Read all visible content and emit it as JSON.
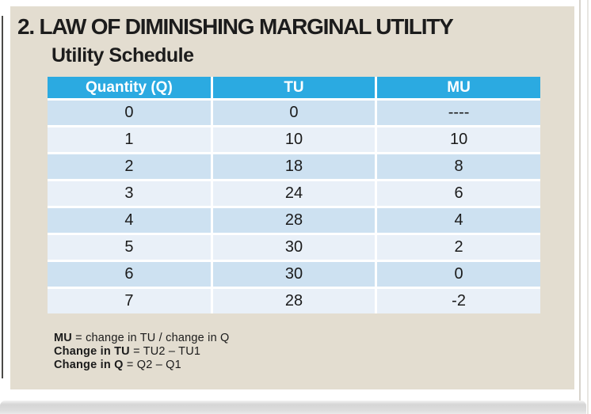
{
  "slide": {
    "title": "2. LAW OF DIMINISHING MARGINAL UTILITY",
    "subtitle": "Utility Schedule",
    "table": {
      "headers": [
        "Quantity (Q)",
        "TU",
        "MU"
      ],
      "rows": [
        [
          "0",
          "0",
          "----"
        ],
        [
          "1",
          "10",
          "10"
        ],
        [
          "2",
          "18",
          "8"
        ],
        [
          "3",
          "24",
          "6"
        ],
        [
          "4",
          "28",
          "4"
        ],
        [
          "5",
          "30",
          "2"
        ],
        [
          "6",
          "30",
          "0"
        ],
        [
          "7",
          "28",
          "-2"
        ]
      ]
    },
    "notes": [
      {
        "bold": "MU",
        "rest": " = change in TU / change in Q"
      },
      {
        "bold": "Change in TU",
        "rest": " = TU2 – TU1"
      },
      {
        "bold": "Change in Q",
        "rest": " = Q2 – Q1"
      }
    ],
    "colors": {
      "slide_background": "#e3ddd0",
      "table_header": "#2baae1",
      "row_shaded": "#cde1f1",
      "row_light": "#e9f0f8",
      "header_text": "#ffffff",
      "body_text": "#1b1b1b"
    }
  }
}
